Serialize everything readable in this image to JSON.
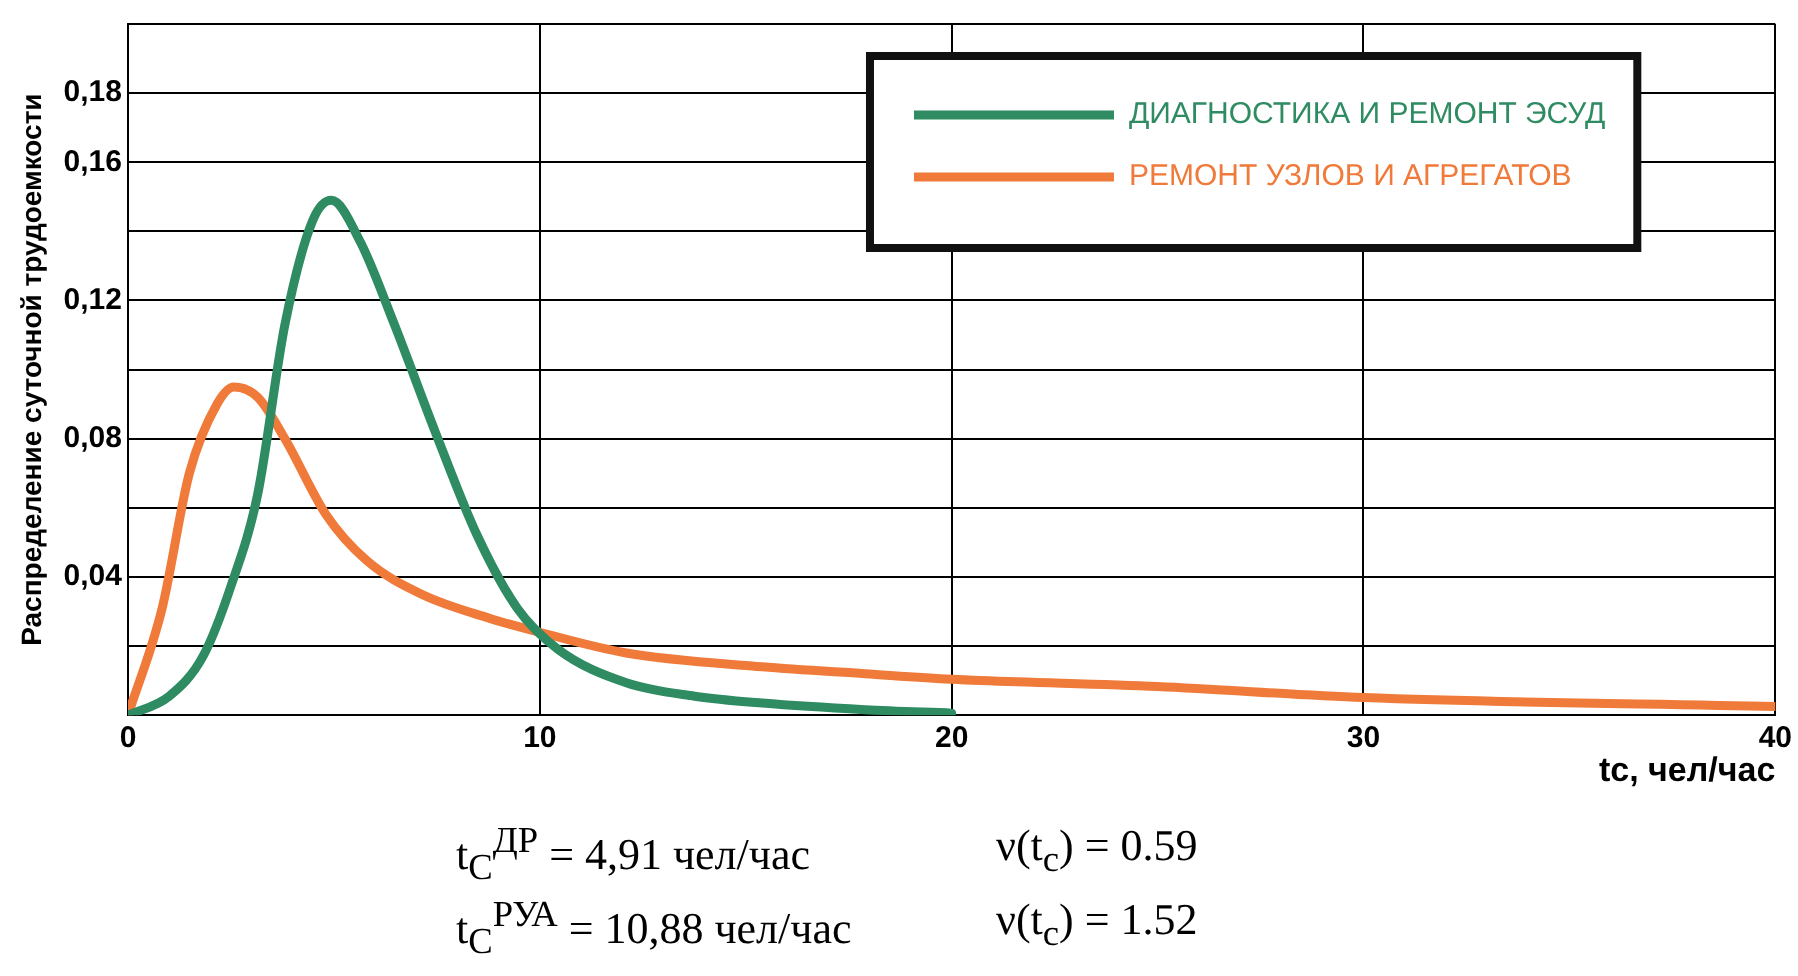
{
  "chart_data": {
    "type": "line",
    "xlabel": "tc, чел/час",
    "ylabel": "Распределение суточной трудоемкости",
    "xlim": [
      0,
      40
    ],
    "xticks": [
      0,
      10,
      20,
      30,
      40
    ],
    "ylim": [
      0,
      0.2
    ],
    "yticks": [
      {
        "value": 0.02,
        "label": null
      },
      {
        "value": 0.04,
        "label": "0,04"
      },
      {
        "value": 0.06,
        "label": null
      },
      {
        "value": 0.08,
        "label": "0,08"
      },
      {
        "value": 0.1,
        "label": null
      },
      {
        "value": 0.12,
        "label": "0,12"
      },
      {
        "value": 0.14,
        "label": null
      },
      {
        "value": 0.16,
        "label": "0,16"
      },
      {
        "value": 0.18,
        "label": "0,18"
      },
      {
        "value": 0.2,
        "label": null
      }
    ],
    "grid": true,
    "legend": "top right",
    "marker": "none",
    "line_style": "solid",
    "series": [
      {
        "name": "ДИАГНОСТИКА И РЕМОНТ ЭСУД",
        "color": "#2e8b62",
        "x": [
          0,
          1.0,
          1.82,
          2.49,
          3.15,
          3.81,
          4.48,
          4.94,
          5.64,
          6.47,
          7.46,
          8.46,
          9.45,
          10.45,
          12.1,
          13.76,
          15.4,
          17.9,
          20
        ],
        "values": [
          0,
          0.0055,
          0.017,
          0.037,
          0.064,
          0.113,
          0.143,
          0.149,
          0.137,
          0.113,
          0.082,
          0.0525,
          0.031,
          0.019,
          0.0094,
          0.0055,
          0.0035,
          0.0016,
          0.0006
        ]
      },
      {
        "name": "РЕМОНТ УЗЛОВ И АГРЕГАТОВ",
        "color": "#f07a3a",
        "x": [
          0,
          0.83,
          1.49,
          2.16,
          2.57,
          3.15,
          3.81,
          4.81,
          5.8,
          7.13,
          8.79,
          10,
          12.1,
          15.4,
          17.9,
          20,
          25,
          30,
          40
        ],
        "values": [
          0,
          0.031,
          0.07,
          0.09,
          0.095,
          0.092,
          0.08,
          0.058,
          0.0447,
          0.035,
          0.028,
          0.024,
          0.018,
          0.014,
          0.012,
          0.0104,
          0.0083,
          0.0051,
          0.0025
        ]
      }
    ],
    "annotations": [
      "t$_{C}$$^{ДР}$ = 4,91 чел/час",
      "ν(t$_{с}$) = 0.59",
      "t$_{C}$$^{РУА}$ = 10,88 чел/час",
      "ν(t$_{с}$) = 1.52"
    ]
  }
}
